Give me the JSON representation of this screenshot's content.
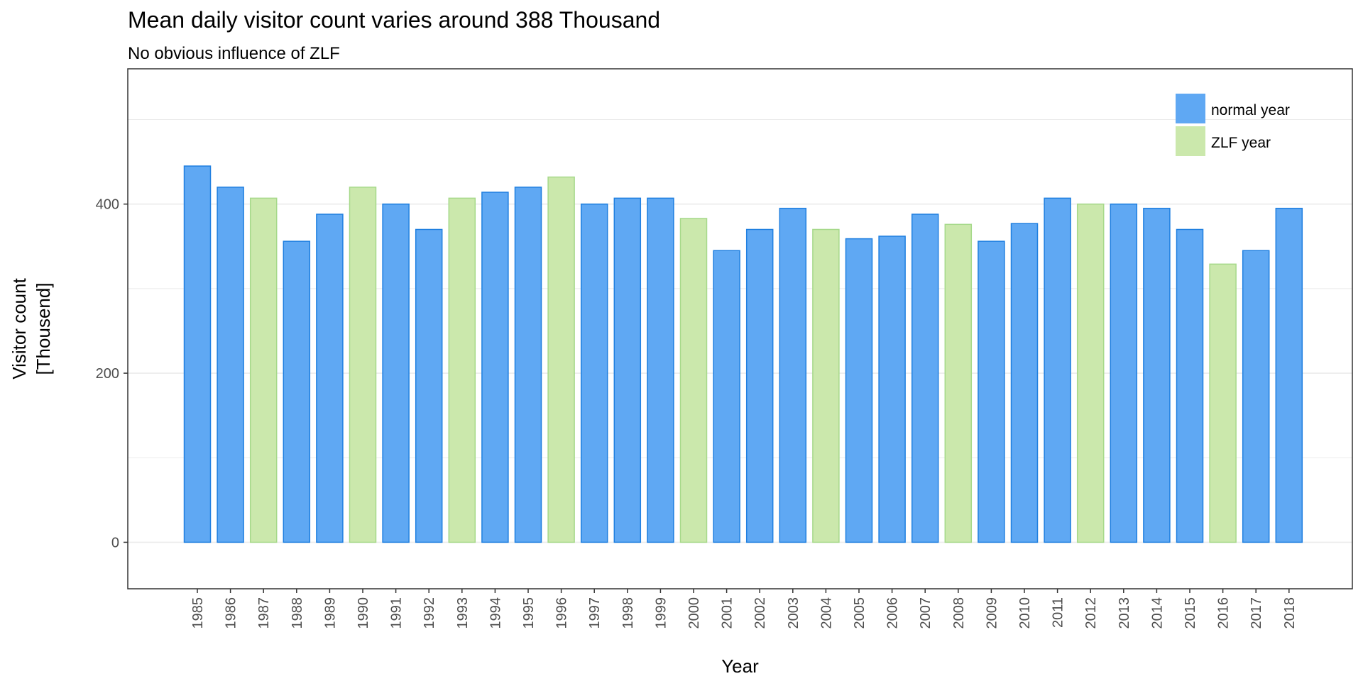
{
  "colors": {
    "normal_fill": "#5FA8F3",
    "normal_stroke": "#1F7FE0",
    "zlf_fill": "#CBE8AC",
    "zlf_stroke": "#A6D98A",
    "grid": "#EBEBEB",
    "border": "#333333"
  },
  "chart_data": {
    "type": "bar",
    "title": "Mean daily visitor count varies around 388 Thousand",
    "subtitle": "No obvious influence of ZLF",
    "xlabel": "Year",
    "ylabel_lines": [
      "Visitor count",
      "[Thousend]"
    ],
    "ylim": [
      -55,
      560
    ],
    "yticks": [
      0,
      200,
      400
    ],
    "grid": true,
    "legend_position": "top-right",
    "legend": [
      {
        "name": "normal year",
        "key": "normal"
      },
      {
        "name": "ZLF year",
        "key": "zlf"
      }
    ],
    "categories": [
      "1985",
      "1986",
      "1987",
      "1988",
      "1989",
      "1990",
      "1991",
      "1992",
      "1993",
      "1994",
      "1995",
      "1996",
      "1997",
      "1998",
      "1999",
      "2000",
      "2001",
      "2002",
      "2003",
      "2004",
      "2005",
      "2006",
      "2007",
      "2008",
      "2009",
      "2010",
      "2011",
      "2012",
      "2013",
      "2014",
      "2015",
      "2016",
      "2017",
      "2018"
    ],
    "values": [
      445,
      420,
      407,
      356,
      388,
      420,
      400,
      370,
      407,
      414,
      420,
      432,
      400,
      407,
      407,
      383,
      345,
      370,
      395,
      370,
      359,
      362,
      388,
      376,
      356,
      377,
      407,
      400,
      400,
      395,
      370,
      329,
      345,
      395
    ],
    "groups": [
      "normal",
      "normal",
      "zlf",
      "normal",
      "normal",
      "zlf",
      "normal",
      "normal",
      "zlf",
      "normal",
      "normal",
      "zlf",
      "normal",
      "normal",
      "normal",
      "zlf",
      "normal",
      "normal",
      "normal",
      "zlf",
      "normal",
      "normal",
      "normal",
      "zlf",
      "normal",
      "normal",
      "normal",
      "zlf",
      "normal",
      "normal",
      "normal",
      "zlf",
      "normal",
      "normal"
    ]
  }
}
